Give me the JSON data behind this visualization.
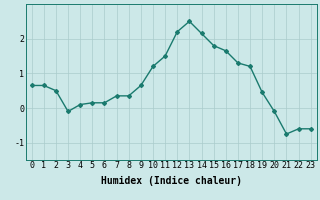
{
  "x": [
    0,
    1,
    2,
    3,
    4,
    5,
    6,
    7,
    8,
    9,
    10,
    11,
    12,
    13,
    14,
    15,
    16,
    17,
    18,
    19,
    20,
    21,
    22,
    23
  ],
  "y": [
    0.65,
    0.65,
    0.5,
    -0.1,
    0.1,
    0.15,
    0.15,
    0.35,
    0.35,
    0.65,
    1.2,
    1.5,
    2.2,
    2.5,
    2.15,
    1.8,
    1.65,
    1.3,
    1.2,
    0.45,
    -0.1,
    -0.75,
    -0.6,
    -0.6
  ],
  "line_color": "#1a7a6e",
  "marker": "D",
  "marker_size": 2,
  "bg_color": "#cce8e8",
  "grid_color": "#aacccc",
  "xlabel": "Humidex (Indice chaleur)",
  "xlim": [
    -0.5,
    23.5
  ],
  "ylim": [
    -1.5,
    3.0
  ],
  "yticks": [
    -1,
    0,
    1,
    2
  ],
  "xlabel_fontsize": 7,
  "tick_fontsize": 6,
  "line_width": 1.0
}
